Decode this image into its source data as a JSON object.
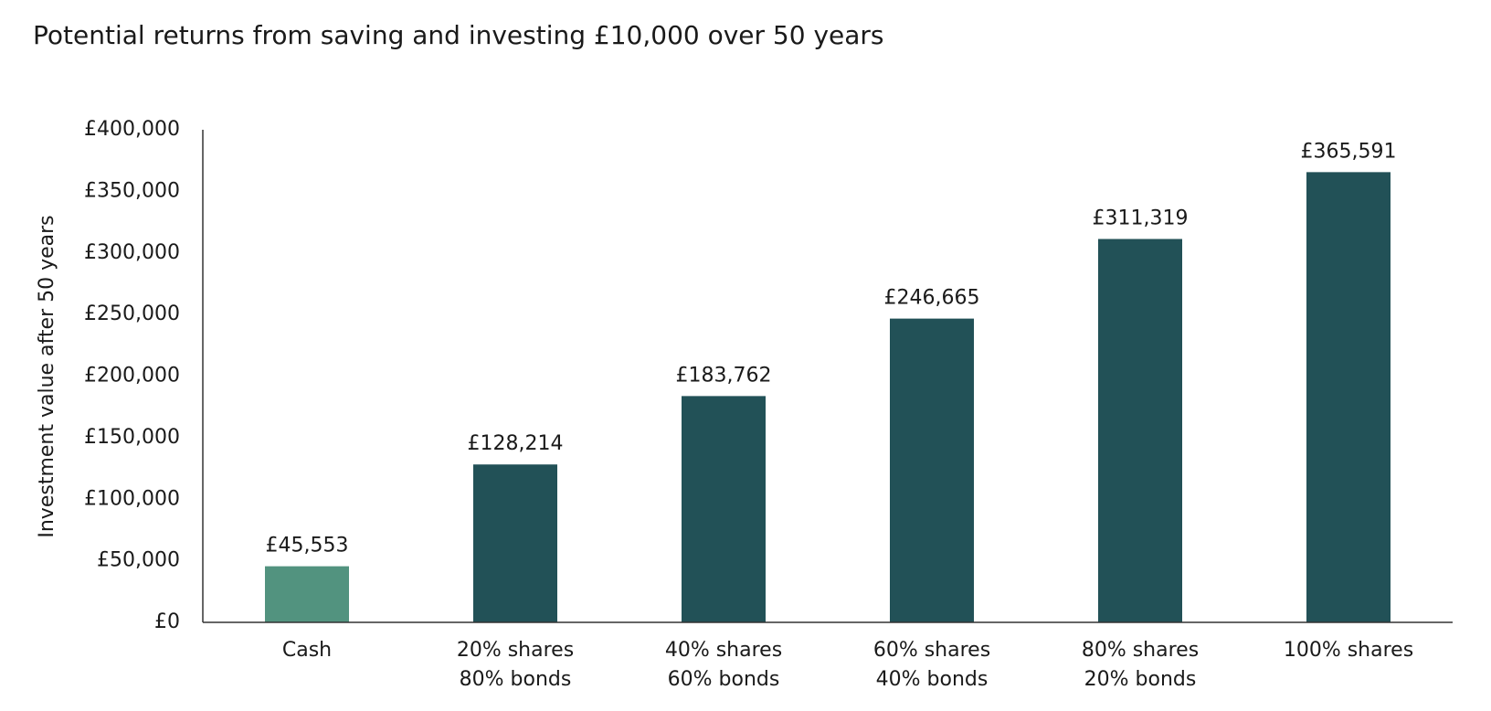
{
  "chart_data": {
    "type": "bar",
    "title": "Potential returns from saving and investing £10,000 over 50 years",
    "y_label": "Investment value after 50 years",
    "categories": [
      "Cash",
      "20% shares\n80% bonds",
      "40% shares\n60% bonds",
      "60% shares\n40% bonds",
      "80% shares\n20% bonds",
      "100% shares"
    ],
    "values": [
      45553,
      128214,
      183762,
      246665,
      311319,
      365591
    ],
    "value_labels": [
      "£45,553",
      "£128,214",
      "£183,762",
      "£246,665",
      "£311,319",
      "£365,591"
    ],
    "colors": [
      "#52937f",
      "#225157",
      "#225157",
      "#225157",
      "#225157",
      "#225157"
    ],
    "ylim": [
      0,
      400000
    ],
    "yticks": [
      {
        "value": 0,
        "label": "£0"
      },
      {
        "value": 50000,
        "label": "£50,000"
      },
      {
        "value": 100000,
        "label": "£100,000"
      },
      {
        "value": 150000,
        "label": "£150,000"
      },
      {
        "value": 200000,
        "label": "£200,000"
      },
      {
        "value": 250000,
        "label": "£250,000"
      },
      {
        "value": 300000,
        "label": "£300,000"
      },
      {
        "value": 350000,
        "label": "£350,000"
      },
      {
        "value": 400000,
        "label": "£400,000"
      }
    ],
    "grid": false
  }
}
